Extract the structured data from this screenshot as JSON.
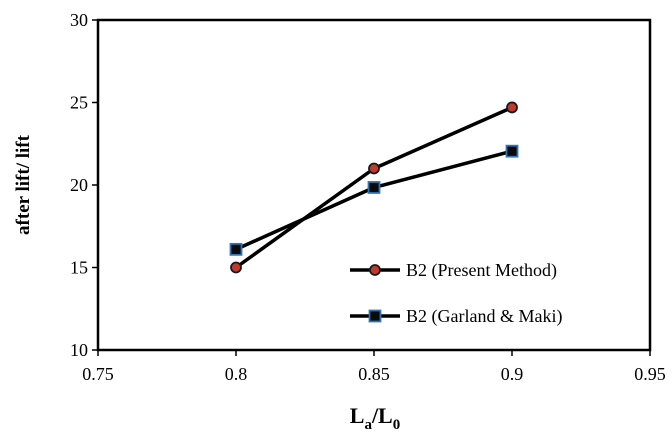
{
  "chart_data": {
    "type": "line",
    "x": [
      0.8,
      0.85,
      0.9
    ],
    "series": [
      {
        "name": "B2 (Present Method)",
        "values": [
          15.0,
          21.0,
          24.7
        ],
        "marker": "circle",
        "line_color": "#000000",
        "marker_fill": "#c0392b",
        "marker_edge": "#1a1a1a"
      },
      {
        "name": "B2 (Garland & Maki)",
        "values": [
          16.1,
          19.85,
          22.05
        ],
        "marker": "square",
        "line_color": "#000000",
        "marker_fill": "#0a0a0a",
        "marker_edge": "#2e75b6"
      }
    ],
    "xlim": [
      0.75,
      0.95
    ],
    "ylim": [
      10,
      30
    ],
    "x_ticks": [
      "0.75",
      "0.8",
      "0.85",
      "0.9",
      "0.95"
    ],
    "y_ticks": [
      "10",
      "15",
      "20",
      "25",
      "30"
    ],
    "xlabel": {
      "main": "L",
      "sub1": "a",
      "slash": "/L",
      "sub2": "0"
    },
    "ylabel": "after lift/ lift",
    "grid": false,
    "legend_position": "bottom-right"
  }
}
